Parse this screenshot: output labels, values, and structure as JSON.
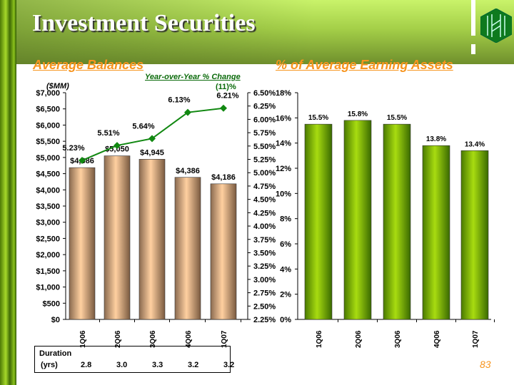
{
  "title": "Investment Securities",
  "page_number": "83",
  "chart_data": [
    {
      "type": "bar",
      "title": "Average Balances",
      "unit_label": "($MM)",
      "categories": [
        "1Q06",
        "2Q06",
        "3Q06",
        "4Q06",
        "1Q07"
      ],
      "values": [
        4686,
        5050,
        4945,
        4386,
        4186
      ],
      "value_labels": [
        "$4,686",
        "$5,050",
        "$4,945",
        "$4,386",
        "$4,186"
      ],
      "ylim": [
        0,
        7000
      ],
      "yticks": [
        "$0",
        "$500",
        "$1,000",
        "$1,500",
        "$2,000",
        "$2,500",
        "$3,000",
        "$3,500",
        "$4,000",
        "$4,500",
        "$5,000",
        "$5,500",
        "$6,000",
        "$6,500",
        "$7,000"
      ],
      "line_series": {
        "name": "Year-over-Year % Change",
        "values": [
          5.23,
          5.51,
          5.64,
          6.13,
          6.21
        ],
        "value_labels": [
          "5.23%",
          "5.51%",
          "5.64%",
          "6.13%",
          "6.21%"
        ],
        "ylim": [
          2.25,
          6.5
        ],
        "yticks": [
          "2.25%",
          "2.50%",
          "2.75%",
          "3.00%",
          "3.25%",
          "3.50%",
          "3.75%",
          "4.00%",
          "4.25%",
          "4.50%",
          "4.75%",
          "5.00%",
          "5.25%",
          "5.50%",
          "5.75%",
          "6.00%",
          "6.25%",
          "6.50%"
        ]
      },
      "annotation": "(11)%",
      "colors": {
        "bar": "#f8c898",
        "line": "#118811"
      }
    },
    {
      "type": "bar",
      "title": "% of Average Earning Assets",
      "categories": [
        "1Q06",
        "2Q06",
        "3Q06",
        "4Q06",
        "1Q07"
      ],
      "values": [
        15.5,
        15.8,
        15.5,
        13.8,
        13.4
      ],
      "value_labels": [
        "15.5%",
        "15.8%",
        "15.5%",
        "13.8%",
        "13.4%"
      ],
      "ylim": [
        0,
        18
      ],
      "yticks": [
        "0%",
        "2%",
        "4%",
        "6%",
        "8%",
        "10%",
        "12%",
        "14%",
        "16%",
        "18%"
      ],
      "colors": {
        "bar": "#8fc400"
      }
    }
  ],
  "duration": {
    "label1": "Duration",
    "label2": "(yrs)",
    "values": [
      "2.8",
      "3.0",
      "3.3",
      "3.2",
      "3.2"
    ]
  }
}
